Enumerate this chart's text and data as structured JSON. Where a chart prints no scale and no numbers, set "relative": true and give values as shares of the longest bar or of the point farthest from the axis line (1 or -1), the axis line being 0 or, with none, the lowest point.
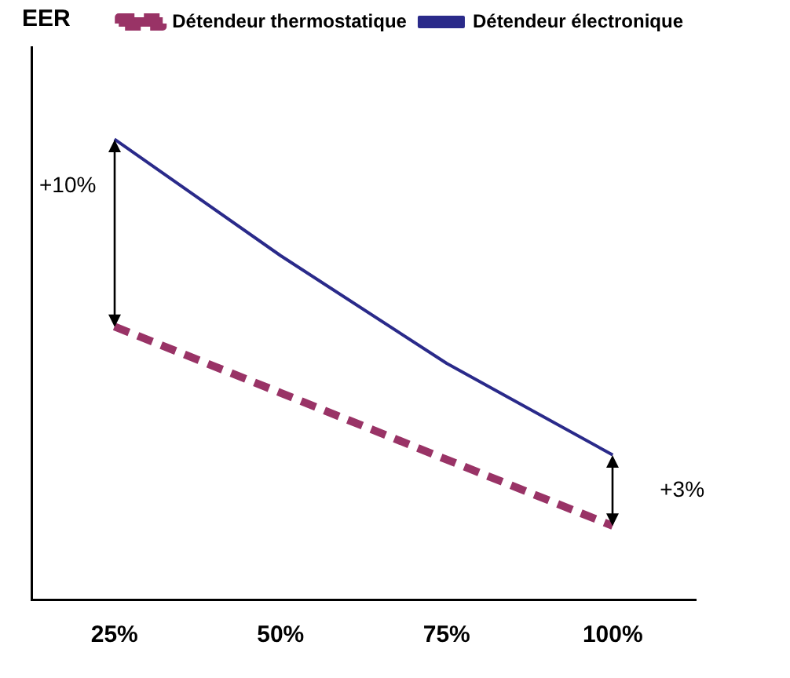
{
  "chart_data": {
    "type": "line",
    "relative": true,
    "ylabel": "EER",
    "categories": [
      "25%",
      "50%",
      "75%",
      "100%"
    ],
    "series": [
      {
        "name": "Détendeur thermostatique",
        "color": "#993366",
        "line_style": "dashed",
        "values": [
          0.593,
          0.449,
          0.304,
          0.16
        ]
      },
      {
        "name": "Détendeur électronique",
        "color": "#2a2a8a",
        "line_style": "solid",
        "values": [
          1,
          0.747,
          0.513,
          0.314
        ]
      }
    ],
    "annotations": [
      "+10%",
      "+3%"
    ],
    "marker": "none",
    "legend": "top right",
    "grid": false
  }
}
